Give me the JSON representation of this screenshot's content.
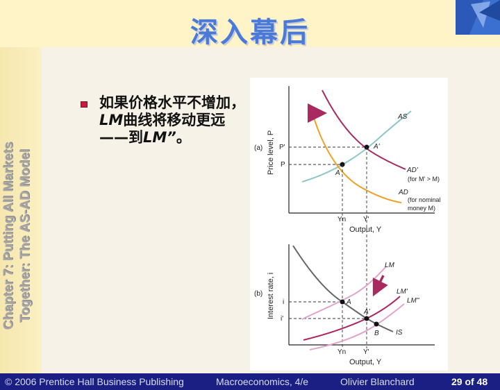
{
  "slide": {
    "title": "深入幕后",
    "vertical_title_line1": "Chapter 7: Putting All Markets",
    "vertical_title_line2": "Together: The AS-AD Model",
    "bullet": {
      "part1": "如果价格水平不增加，",
      "lm1": "LM",
      "part2": "曲线将移动更远——到",
      "lm2": "LM”",
      "part3": "。"
    }
  },
  "figure": {
    "panel_a": {
      "tag": "(a)",
      "ylabel": "Price level, P",
      "xlabel": "Output, Y",
      "curve_AS": "AS",
      "curve_ADp": "AD'",
      "curve_ADp_note": "(for M' > M)",
      "curve_AD": "AD",
      "curve_AD_note1": "(for nominal",
      "curve_AD_note2": "money M)",
      "tick_Pp": "P'",
      "tick_P": "P",
      "tick_Yn": "Yn",
      "tick_Yp": "Y'",
      "point_A": "A",
      "point_Ap": "A'"
    },
    "panel_b": {
      "tag": "(b)",
      "ylabel": "Interest rate, i",
      "xlabel": "Output, Y",
      "curve_LM": "LM",
      "curve_LMp": "LM'",
      "curve_LMpp": "LM\"",
      "curve_IS": "IS",
      "tick_i": "i",
      "tick_ip": "i'",
      "tick_Yn": "Yn",
      "tick_Yp": "Y'",
      "point_A": "A",
      "point_Ap": "A'",
      "point_B": "B"
    },
    "colors": {
      "AS": "#8FC7C8",
      "AD": "#F0A020",
      "ADp": "#A42D63",
      "LM": "#E2A2CD",
      "LMp": "#AE2260",
      "IS": "#666666",
      "arrow": "#A82A60"
    }
  },
  "footer": {
    "copyright": "© 2006 Prentice Hall Business Publishing",
    "book": "Macroeconomics, 4/e",
    "author": "Olivier Blanchard",
    "page": "29 of 48"
  }
}
